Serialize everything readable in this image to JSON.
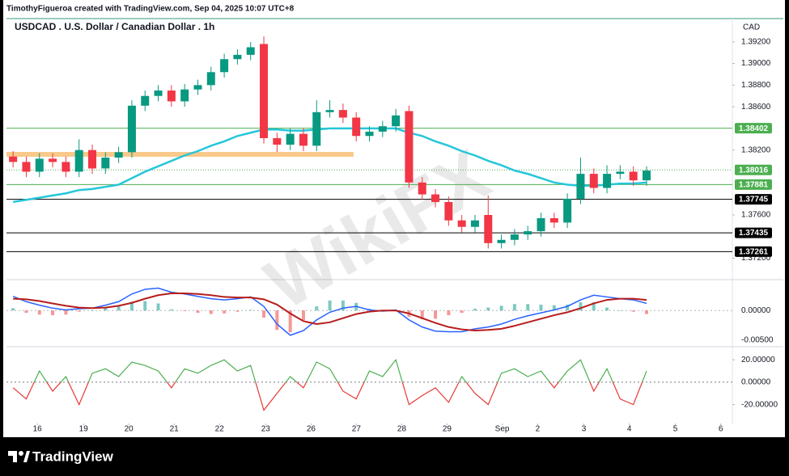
{
  "header": {
    "credit": "TimothyFigueroa created with TradingView.com, Sep 04, 2025 10:07 UTC+8"
  },
  "footer": {
    "brand": "TradingView"
  },
  "watermark": "WikiFX",
  "chart_data": [
    {
      "type": "candlestick",
      "title": "USDCAD . U.S. Dollar / Canadian Dollar . 1h",
      "ylabel": "CAD",
      "up_color": "#089981",
      "down_color": "#f23645",
      "xlim": [
        -0.5,
        54.5
      ],
      "xticks": [
        {
          "value": 1.84,
          "label": "16"
        },
        {
          "value": 5.34,
          "label": "19"
        },
        {
          "value": 8.77,
          "label": "20"
        },
        {
          "value": 12.2,
          "label": "21"
        },
        {
          "value": 15.64,
          "label": "22"
        },
        {
          "value": 19.14,
          "label": "23"
        },
        {
          "value": 22.58,
          "label": "26"
        },
        {
          "value": 26.01,
          "label": "27"
        },
        {
          "value": 29.45,
          "label": "28"
        },
        {
          "value": 32.88,
          "label": "29"
        },
        {
          "value": 37.06,
          "label": "Sep"
        },
        {
          "value": 39.75,
          "label": "2"
        },
        {
          "value": 43.25,
          "label": "3"
        },
        {
          "value": 46.69,
          "label": "4"
        },
        {
          "value": 50.18,
          "label": "5"
        },
        {
          "value": 53.62,
          "label": "6"
        }
      ],
      "ylim": [
        1.3701,
        1.394
      ],
      "yticks": [
        {
          "value": 1.392,
          "label": "1.39200"
        },
        {
          "value": 1.39,
          "label": "1.39000"
        },
        {
          "value": 1.388,
          "label": "1.38800"
        },
        {
          "value": 1.386,
          "label": "1.38600"
        },
        {
          "value": 1.382,
          "label": "1.38200"
        },
        {
          "value": 1.376,
          "label": "1.37600"
        },
        {
          "value": 1.372,
          "label": "1.37200"
        }
      ],
      "open": [
        1.3814,
        1.3809,
        1.38,
        1.3812,
        1.3809,
        1.38,
        1.382,
        1.3803,
        1.3813,
        1.3818,
        1.3861,
        1.387,
        1.3875,
        1.3865,
        1.3876,
        1.388,
        1.3892,
        1.3904,
        1.3908,
        1.3918,
        1.3831,
        1.3825,
        1.3835,
        1.3824,
        1.3855,
        1.3857,
        1.385,
        1.3833,
        1.3837,
        1.3842,
        1.3856,
        1.379,
        1.3779,
        1.3772,
        1.3755,
        1.3749,
        1.376,
        1.3734,
        1.3737,
        1.3742,
        1.3745,
        1.3757,
        1.3753,
        1.3775,
        1.3798,
        1.3785,
        1.3798,
        1.38,
        1.3792
      ],
      "high": [
        1.3819,
        1.3814,
        1.3817,
        1.3817,
        1.3814,
        1.383,
        1.3825,
        1.3818,
        1.3823,
        1.3866,
        1.3875,
        1.388,
        1.388,
        1.3881,
        1.3885,
        1.3897,
        1.3909,
        1.3913,
        1.392,
        1.3925,
        1.3836,
        1.384,
        1.384,
        1.3866,
        1.3866,
        1.3863,
        1.3855,
        1.3842,
        1.3847,
        1.3858,
        1.3861,
        1.3795,
        1.3784,
        1.3777,
        1.376,
        1.376,
        1.3778,
        1.3742,
        1.3747,
        1.375,
        1.3762,
        1.3762,
        1.378,
        1.3813,
        1.3803,
        1.3806,
        1.3806,
        1.3805,
        1.3805
      ],
      "low": [
        1.3804,
        1.3795,
        1.3795,
        1.3804,
        1.3795,
        1.3795,
        1.3798,
        1.3798,
        1.3808,
        1.3813,
        1.3856,
        1.3865,
        1.386,
        1.386,
        1.3871,
        1.3875,
        1.3887,
        1.3899,
        1.3903,
        1.3826,
        1.3818,
        1.382,
        1.3819,
        1.3819,
        1.385,
        1.3845,
        1.3828,
        1.3828,
        1.3832,
        1.3837,
        1.3785,
        1.3774,
        1.3767,
        1.375,
        1.3744,
        1.3744,
        1.3729,
        1.3729,
        1.3732,
        1.3737,
        1.374,
        1.3748,
        1.3748,
        1.377,
        1.378,
        1.378,
        1.3793,
        1.3787,
        1.3787
      ],
      "close": [
        1.3809,
        1.38,
        1.3812,
        1.3809,
        1.38,
        1.382,
        1.3803,
        1.3813,
        1.3818,
        1.3861,
        1.387,
        1.3875,
        1.3865,
        1.3876,
        1.388,
        1.3892,
        1.3904,
        1.3908,
        1.3915,
        1.3831,
        1.3825,
        1.3835,
        1.3824,
        1.3855,
        1.3857,
        1.385,
        1.3833,
        1.3837,
        1.3842,
        1.3852,
        1.379,
        1.3779,
        1.3772,
        1.3755,
        1.3749,
        1.3755,
        1.3734,
        1.3737,
        1.3742,
        1.3745,
        1.3757,
        1.3753,
        1.3775,
        1.3798,
        1.3785,
        1.3798,
        1.38,
        1.3792,
        1.3801
      ],
      "ma": {
        "color": "#26c6da",
        "values": [
          1.3772,
          1.3774,
          1.3776,
          1.3778,
          1.378,
          1.3783,
          1.3784,
          1.3786,
          1.3788,
          1.3794,
          1.38,
          1.3805,
          1.381,
          1.3815,
          1.3819,
          1.3824,
          1.3828,
          1.3833,
          1.3836,
          1.3839,
          1.3839,
          1.3838,
          1.3838,
          1.3839,
          1.384,
          1.384,
          1.384,
          1.384,
          1.384,
          1.384,
          1.3836,
          1.3833,
          1.3828,
          1.3824,
          1.3819,
          1.3815,
          1.381,
          1.3806,
          1.3801,
          1.3798,
          1.3794,
          1.379,
          1.3788,
          1.3787,
          1.3787,
          1.3788,
          1.3789,
          1.3789,
          1.379
        ]
      },
      "zone": {
        "value": 1.3816,
        "to": 25.8,
        "color": "#f9c98a"
      },
      "levels": [
        {
          "value": 1.38402,
          "color": "#4caf50"
        },
        {
          "value": 1.37881,
          "color": "#4caf50"
        },
        {
          "value": 1.37745,
          "color": "#000000"
        },
        {
          "value": 1.37435,
          "color": "#000000"
        },
        {
          "value": 1.37261,
          "color": "#000000"
        }
      ],
      "current": {
        "value": 1.38016,
        "color": "#4caf50"
      }
    },
    {
      "type": "macd",
      "ylim": [
        -0.006,
        0.0051
      ],
      "yticks": [
        {
          "value": 0,
          "label": "0.00000"
        },
        {
          "value": -0.005,
          "label": "-0.00500"
        }
      ],
      "macd": {
        "color": "#2962ff",
        "values": [
          0.0024,
          0.0015,
          0.0009,
          0.0004,
          0.0001,
          0.0003,
          0.0004,
          0.0009,
          0.0015,
          0.0028,
          0.0036,
          0.0038,
          0.0031,
          0.0028,
          0.0024,
          0.002,
          0.0018,
          0.002,
          0.0023,
          0.0007,
          -0.0023,
          -0.0042,
          -0.0034,
          -0.0016,
          -0.0003,
          0.0004,
          0.0007,
          0.0001,
          -0.0001,
          0.0001,
          -0.0016,
          -0.0028,
          -0.0035,
          -0.0036,
          -0.0036,
          -0.0031,
          -0.0028,
          -0.0023,
          -0.0015,
          -0.0009,
          -0.0004,
          0.0001,
          0.0007,
          0.0018,
          0.0026,
          0.0023,
          0.002,
          0.0018,
          0.0012
        ]
      },
      "signal": {
        "color": "#b71c1c",
        "values": [
          0.002,
          0.0019,
          0.0016,
          0.0012,
          0.0008,
          0.0005,
          0.0004,
          0.0005,
          0.0008,
          0.0013,
          0.002,
          0.0026,
          0.0029,
          0.0029,
          0.0028,
          0.0026,
          0.0023,
          0.0022,
          0.0022,
          0.0019,
          0.001,
          -0.0005,
          -0.0018,
          -0.0023,
          -0.002,
          -0.0013,
          -0.0006,
          -0.0002,
          0.0,
          0.0,
          -0.0005,
          -0.0013,
          -0.0021,
          -0.0028,
          -0.0032,
          -0.0034,
          -0.0033,
          -0.0031,
          -0.0026,
          -0.002,
          -0.0014,
          -0.0008,
          -0.0003,
          0.0004,
          0.0012,
          0.0018,
          0.002,
          0.002,
          0.0018
        ]
      },
      "histogram": {
        "up_color": "#26a69a",
        "down_color": "#ef5350",
        "values": [
          0.0004,
          -0.0004,
          -0.0007,
          -0.0008,
          -0.0007,
          -0.0002,
          0.0,
          0.0004,
          0.0007,
          0.0015,
          0.0016,
          0.0012,
          0.0002,
          -0.0001,
          -0.0004,
          -0.0006,
          -0.0005,
          -0.0002,
          0.0001,
          -0.0012,
          -0.0033,
          -0.0037,
          -0.0016,
          0.0007,
          0.0017,
          0.0017,
          0.0013,
          0.0003,
          -0.0001,
          0.0001,
          -0.0011,
          -0.0015,
          -0.0014,
          -0.0008,
          -0.0004,
          0.0003,
          0.0005,
          0.0008,
          0.0011,
          0.0011,
          0.001,
          0.0009,
          0.001,
          0.0014,
          0.0014,
          0.0005,
          0.0,
          -0.0002,
          -0.0006
        ]
      }
    },
    {
      "type": "oscillator",
      "ylim": [
        -34,
        31
      ],
      "up_color": "#4caf50",
      "down_color": "#e53935",
      "yticks": [
        {
          "value": 20,
          "label": "20.00000"
        },
        {
          "value": 0,
          "label": "0.00000"
        },
        {
          "value": -20,
          "label": "-20.00000"
        }
      ],
      "values": [
        -5,
        -15,
        10,
        -8,
        5,
        -20,
        8,
        12,
        5,
        18,
        15,
        10,
        -5,
        12,
        8,
        15,
        20,
        10,
        15,
        -25,
        -10,
        5,
        -5,
        18,
        12,
        -8,
        -15,
        10,
        5,
        20,
        -20,
        -12,
        -5,
        -18,
        5,
        -10,
        -20,
        8,
        12,
        5,
        10,
        -5,
        10,
        20,
        -8,
        12,
        -15,
        -20,
        10
      ]
    }
  ]
}
